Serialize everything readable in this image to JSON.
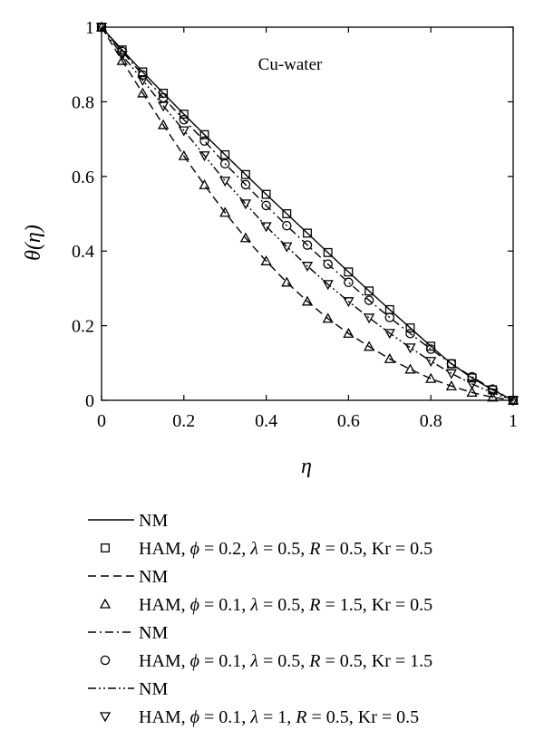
{
  "chart_data": {
    "type": "line",
    "title": "",
    "annotation": "Cu-water",
    "xlabel": "η",
    "ylabel": "θ(η)",
    "xlim": [
      0,
      1
    ],
    "ylim": [
      0,
      1
    ],
    "x_ticks": [
      "0",
      "0.2",
      "0.4",
      "0.6",
      "0.8",
      "1"
    ],
    "y_ticks": [
      "0",
      "0.2",
      "0.4",
      "0.6",
      "0.8",
      "1"
    ],
    "grid": false,
    "legend_position": "below",
    "series": [
      {
        "group": 1,
        "kind": "NM",
        "label": "NM",
        "line_style": "solid",
        "x": [
          0,
          0.05,
          0.1,
          0.15,
          0.2,
          0.25,
          0.3,
          0.35,
          0.4,
          0.45,
          0.5,
          0.55,
          0.6,
          0.65,
          0.7,
          0.75,
          0.8,
          0.85,
          0.9,
          0.95,
          1
        ],
        "y": [
          1,
          0.939,
          0.88,
          0.823,
          0.767,
          0.712,
          0.658,
          0.605,
          0.552,
          0.5,
          0.448,
          0.396,
          0.344,
          0.293,
          0.243,
          0.194,
          0.145,
          0.098,
          0.06,
          0.028,
          0
        ]
      },
      {
        "group": 1,
        "kind": "HAM",
        "marker": "square",
        "label_prefix": "HAM, ",
        "phi": "0.2",
        "lambda": "0.5",
        "R": "0.5",
        "Kr": "0.5",
        "x": [
          0,
          0.05,
          0.1,
          0.15,
          0.2,
          0.25,
          0.3,
          0.35,
          0.4,
          0.45,
          0.5,
          0.55,
          0.6,
          0.65,
          0.7,
          0.75,
          0.8,
          0.85,
          0.9,
          0.95,
          1
        ],
        "y": [
          1,
          0.939,
          0.88,
          0.823,
          0.767,
          0.712,
          0.658,
          0.605,
          0.552,
          0.5,
          0.448,
          0.396,
          0.344,
          0.293,
          0.243,
          0.194,
          0.145,
          0.098,
          0.06,
          0.028,
          0
        ]
      },
      {
        "group": 2,
        "kind": "NM",
        "label": "NM",
        "line_style": "dashed",
        "x": [
          0,
          0.05,
          0.1,
          0.15,
          0.2,
          0.25,
          0.3,
          0.35,
          0.4,
          0.45,
          0.5,
          0.55,
          0.6,
          0.65,
          0.7,
          0.75,
          0.8,
          0.85,
          0.9,
          0.95,
          1
        ],
        "y": [
          1,
          0.91,
          0.823,
          0.738,
          0.655,
          0.577,
          0.503,
          0.435,
          0.373,
          0.316,
          0.265,
          0.219,
          0.179,
          0.144,
          0.111,
          0.083,
          0.058,
          0.038,
          0.021,
          0.008,
          0
        ]
      },
      {
        "group": 2,
        "kind": "HAM",
        "marker": "triangle-up",
        "label_prefix": "HAM, ",
        "phi": "0.1",
        "lambda": "0.5",
        "R": "1.5",
        "Kr": "0.5",
        "x": [
          0,
          0.05,
          0.1,
          0.15,
          0.2,
          0.25,
          0.3,
          0.35,
          0.4,
          0.45,
          0.5,
          0.55,
          0.6,
          0.65,
          0.7,
          0.75,
          0.8,
          0.85,
          0.9,
          0.95,
          1
        ],
        "y": [
          1,
          0.91,
          0.823,
          0.738,
          0.655,
          0.577,
          0.503,
          0.435,
          0.373,
          0.316,
          0.265,
          0.219,
          0.179,
          0.144,
          0.111,
          0.083,
          0.058,
          0.038,
          0.021,
          0.008,
          0
        ]
      },
      {
        "group": 3,
        "kind": "NM",
        "label": "NM",
        "line_style": "dash-dot",
        "x": [
          0,
          0.05,
          0.1,
          0.15,
          0.2,
          0.25,
          0.3,
          0.35,
          0.4,
          0.45,
          0.5,
          0.55,
          0.6,
          0.65,
          0.7,
          0.75,
          0.8,
          0.85,
          0.9,
          0.95,
          1
        ],
        "y": [
          1,
          0.935,
          0.872,
          0.811,
          0.752,
          0.695,
          0.634,
          0.578,
          0.522,
          0.468,
          0.416,
          0.365,
          0.316,
          0.268,
          0.222,
          0.179,
          0.137,
          0.098,
          0.063,
          0.03,
          0
        ]
      },
      {
        "group": 3,
        "kind": "HAM",
        "marker": "circle",
        "label_prefix": "HAM, ",
        "phi": "0.1",
        "lambda": "0.5",
        "R": "0.5",
        "Kr": "1.5",
        "x": [
          0,
          0.05,
          0.1,
          0.15,
          0.2,
          0.25,
          0.3,
          0.35,
          0.4,
          0.45,
          0.5,
          0.55,
          0.6,
          0.65,
          0.7,
          0.75,
          0.8,
          0.85,
          0.9,
          0.95,
          1
        ],
        "y": [
          1,
          0.935,
          0.872,
          0.811,
          0.752,
          0.695,
          0.634,
          0.578,
          0.522,
          0.468,
          0.416,
          0.365,
          0.316,
          0.268,
          0.222,
          0.179,
          0.137,
          0.098,
          0.063,
          0.03,
          0
        ]
      },
      {
        "group": 4,
        "kind": "NM",
        "label": "NM",
        "line_style": "dash-dot-dot",
        "x": [
          0,
          0.05,
          0.1,
          0.15,
          0.2,
          0.25,
          0.3,
          0.35,
          0.4,
          0.45,
          0.5,
          0.55,
          0.6,
          0.65,
          0.7,
          0.75,
          0.8,
          0.85,
          0.9,
          0.95,
          1
        ],
        "y": [
          1,
          0.925,
          0.858,
          0.789,
          0.723,
          0.656,
          0.588,
          0.527,
          0.466,
          0.412,
          0.36,
          0.311,
          0.265,
          0.221,
          0.18,
          0.141,
          0.105,
          0.072,
          0.044,
          0.02,
          0
        ]
      },
      {
        "group": 4,
        "kind": "HAM",
        "marker": "triangle-down",
        "label_prefix": "HAM, ",
        "phi": "0.1",
        "lambda": "1",
        "R": "0.5",
        "Kr": "0.5",
        "x": [
          0,
          0.05,
          0.1,
          0.15,
          0.2,
          0.25,
          0.3,
          0.35,
          0.4,
          0.45,
          0.5,
          0.55,
          0.6,
          0.65,
          0.7,
          0.75,
          0.8,
          0.85,
          0.9,
          0.95,
          1
        ],
        "y": [
          1,
          0.925,
          0.858,
          0.789,
          0.723,
          0.656,
          0.588,
          0.527,
          0.466,
          0.412,
          0.36,
          0.311,
          0.265,
          0.221,
          0.18,
          0.141,
          0.105,
          0.072,
          0.044,
          0.02,
          0
        ]
      }
    ]
  }
}
